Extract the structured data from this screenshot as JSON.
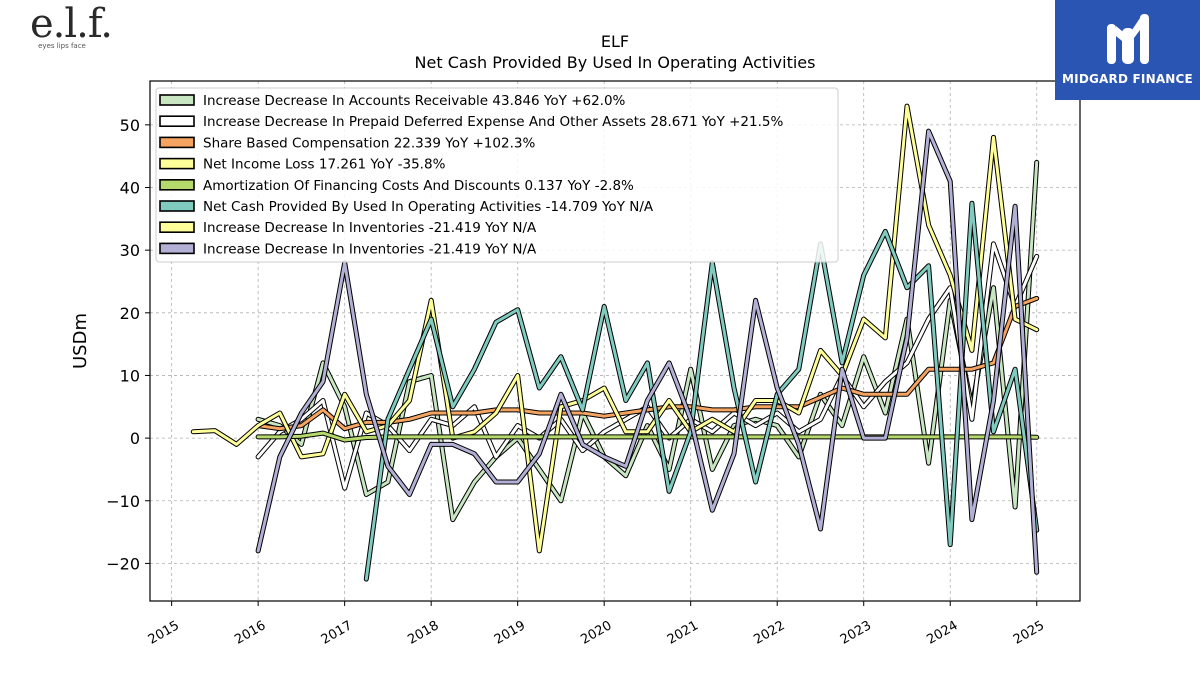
{
  "brand": {
    "left_logo_text": "e.l.f.",
    "left_logo_tagline": "eyes lips face",
    "right_logo_text": "MIDGARD FINANCE",
    "right_logo_color": "#2a55b3"
  },
  "chart_data": {
    "type": "line",
    "title": "ELF",
    "subtitle": "Net Cash Provided By Used In Operating Activities",
    "xlabel": "",
    "ylabel": "USDm",
    "xlim": [
      2014.75,
      2025.5
    ],
    "ylim": [
      -26,
      57
    ],
    "x_ticks": [
      2015,
      2016,
      2017,
      2018,
      2019,
      2020,
      2021,
      2022,
      2023,
      2024,
      2025
    ],
    "x_tick_labels": [
      "2015",
      "2016",
      "2017",
      "2018",
      "2019",
      "2020",
      "2021",
      "2022",
      "2023",
      "2024",
      "2025"
    ],
    "y_ticks": [
      -20,
      -10,
      0,
      10,
      20,
      30,
      40,
      50
    ],
    "y_tick_labels": [
      "−20",
      "−10",
      "0",
      "10",
      "20",
      "30",
      "40",
      "50"
    ],
    "grid": true,
    "legend_position": "top-left",
    "series": [
      {
        "name": "Increase Decrease In Accounts Receivable",
        "legend_label": "Increase Decrease In Accounts Receivable  43.846 YoY +62.0%",
        "color": "#c8e6c1",
        "x": [
          2016.0,
          2016.25,
          2016.5,
          2016.75,
          2017.0,
          2017.25,
          2017.5,
          2017.75,
          2018.0,
          2018.25,
          2018.5,
          2018.75,
          2019.0,
          2019.25,
          2019.5,
          2019.75,
          2020.0,
          2020.25,
          2020.5,
          2020.75,
          2021.0,
          2021.25,
          2021.5,
          2021.75,
          2022.0,
          2022.25,
          2022.5,
          2022.75,
          2023.0,
          2023.25,
          2023.5,
          2023.75,
          2024.0,
          2024.25,
          2024.5,
          2024.75,
          2025.0
        ],
        "y": [
          3,
          2,
          -1,
          12,
          5,
          -9,
          -7,
          9,
          10,
          -13,
          -7,
          -3,
          0,
          -5,
          -10,
          4,
          -3,
          -6,
          2,
          -5,
          11,
          -5,
          2,
          3,
          2,
          -3,
          7,
          2,
          13,
          4,
          19,
          -4,
          22,
          5,
          24,
          -11,
          44
        ]
      },
      {
        "name": "Increase Decrease In Prepaid Deferred Expense And Other Assets",
        "legend_label": "Increase Decrease In Prepaid Deferred Expense And Other Assets  28.671 YoY +21.5%",
        "color": "#ffffff",
        "x": [
          2016.0,
          2016.25,
          2016.5,
          2016.75,
          2017.0,
          2017.25,
          2017.5,
          2017.75,
          2018.0,
          2018.25,
          2018.5,
          2018.75,
          2019.0,
          2019.25,
          2019.5,
          2019.75,
          2020.0,
          2020.25,
          2020.5,
          2020.75,
          2021.0,
          2021.25,
          2021.5,
          2021.75,
          2022.0,
          2022.25,
          2022.5,
          2022.75,
          2023.0,
          2023.25,
          2023.5,
          2023.75,
          2024.0,
          2024.25,
          2024.5,
          2024.75,
          2025.0
        ],
        "y": [
          -3,
          1,
          3,
          6,
          -8,
          4,
          2,
          -2,
          3,
          2,
          5,
          -3,
          2,
          0,
          3,
          -2,
          1,
          3,
          5,
          0,
          3,
          1,
          4,
          2,
          4,
          1,
          3,
          10,
          5,
          9,
          12,
          19,
          24,
          3,
          31,
          21,
          29
        ]
      },
      {
        "name": "Share Based Compensation",
        "legend_label": "Share Based Compensation  22.339 YoY +102.3%",
        "color": "#f4a460",
        "x": [
          2016.0,
          2016.25,
          2016.5,
          2016.75,
          2017.0,
          2017.25,
          2017.5,
          2017.75,
          2018.0,
          2018.25,
          2018.5,
          2018.75,
          2019.0,
          2019.25,
          2019.5,
          2019.75,
          2020.0,
          2020.25,
          2020.5,
          2020.75,
          2021.0,
          2021.25,
          2021.5,
          2021.75,
          2022.0,
          2022.25,
          2022.5,
          2022.75,
          2023.0,
          2023.25,
          2023.5,
          2023.75,
          2024.0,
          2024.25,
          2024.5,
          2024.75,
          2025.0
        ],
        "y": [
          2,
          1.5,
          2,
          4.5,
          1.5,
          2.5,
          2.5,
          3,
          4,
          4,
          4,
          4.5,
          4.5,
          4,
          4,
          4,
          3.5,
          4,
          4.5,
          5,
          5,
          4.5,
          4.5,
          5,
          5,
          5,
          6.5,
          8,
          7,
          7,
          7,
          11,
          11,
          11,
          12,
          21,
          22.3
        ]
      },
      {
        "name": "Net Income Loss",
        "legend_label": "Net Income Loss  17.261 YoY -35.8%",
        "color": "#ffff99",
        "x": [
          2015.25,
          2015.5,
          2015.75,
          2016.0,
          2016.25,
          2016.5,
          2016.75,
          2017.0,
          2017.25,
          2017.5,
          2017.75,
          2018.0,
          2018.25,
          2018.5,
          2018.75,
          2019.0,
          2019.25,
          2019.5,
          2019.75,
          2020.0,
          2020.25,
          2020.5,
          2020.75,
          2021.0,
          2021.25,
          2021.5,
          2021.75,
          2022.0,
          2022.25,
          2022.5,
          2022.75,
          2023.0,
          2023.25,
          2023.5,
          2023.75,
          2024.0,
          2024.25,
          2024.5,
          2024.75,
          2025.0
        ],
        "y": [
          1,
          1.2,
          -1,
          2,
          4,
          -3,
          -2.5,
          7,
          1,
          2,
          6,
          22,
          0,
          1,
          4,
          10,
          -18,
          5,
          6,
          8,
          1,
          1,
          6,
          1,
          3,
          1,
          6,
          6,
          4,
          14,
          10,
          19,
          16,
          53,
          34,
          26,
          14,
          48,
          19,
          17.3
        ]
      },
      {
        "name": "Amortization Of Financing Costs And Discounts",
        "legend_label": "Amortization Of Financing Costs And Discounts  0.137 YoY -2.8%",
        "color": "#b5d96b",
        "x": [
          2016.0,
          2016.25,
          2016.5,
          2016.75,
          2017.0,
          2017.25,
          2017.5,
          2017.75,
          2018.0,
          2018.25,
          2018.5,
          2018.75,
          2019.0,
          2019.25,
          2019.5,
          2019.75,
          2020.0,
          2020.25,
          2020.5,
          2020.75,
          2021.0,
          2021.25,
          2021.5,
          2021.75,
          2022.0,
          2022.25,
          2022.5,
          2022.75,
          2023.0,
          2023.25,
          2023.5,
          2023.75,
          2024.0,
          2024.25,
          2024.5,
          2024.75,
          2025.0
        ],
        "y": [
          0.2,
          0.2,
          0.3,
          0.8,
          -0.3,
          0.1,
          0.2,
          0.2,
          0.2,
          0.2,
          0.2,
          0.2,
          0.2,
          0.2,
          0.2,
          0.2,
          0.2,
          0.2,
          0.2,
          0.2,
          0.2,
          0.2,
          0.2,
          0.2,
          0.2,
          0.2,
          0.2,
          0.2,
          0.2,
          0.2,
          0.2,
          0.2,
          0.2,
          0.2,
          0.2,
          0.2,
          0.137
        ]
      },
      {
        "name": "Net Cash Provided By Used In Operating Activities",
        "legend_label": "Net Cash Provided By Used In Operating Activities  -14.709 YoY N/A",
        "color": "#80cbbf",
        "x": [
          2017.25,
          2017.5,
          2017.75,
          2018.0,
          2018.25,
          2018.5,
          2018.75,
          2019.0,
          2019.25,
          2019.5,
          2019.75,
          2020.0,
          2020.25,
          2020.5,
          2020.75,
          2021.0,
          2021.25,
          2021.5,
          2021.75,
          2022.0,
          2022.25,
          2022.5,
          2022.75,
          2023.0,
          2023.25,
          2023.5,
          2023.75,
          2024.0,
          2024.25,
          2024.5,
          2024.75,
          2025.0
        ],
        "y": [
          -22.5,
          3,
          11,
          19,
          5,
          11,
          18.5,
          20.5,
          8,
          13,
          4.5,
          21,
          6,
          12,
          -8.5,
          1,
          28,
          8,
          -7,
          7,
          11,
          31,
          12,
          26,
          33,
          24,
          27.5,
          -17,
          37.5,
          1,
          11,
          -14.7
        ]
      },
      {
        "name": "Increase Decrease In Inventories",
        "legend_label": "Increase Decrease In Inventories  -21.419 YoY N/A",
        "color": "#ffff99",
        "x": [],
        "y": []
      },
      {
        "name": "Increase Decrease In Inventories",
        "legend_label": "Increase Decrease In Inventories  -21.419 YoY N/A",
        "color": "#b3b0d6",
        "x": [
          2016.0,
          2016.25,
          2016.5,
          2016.75,
          2017.0,
          2017.25,
          2017.5,
          2017.75,
          2018.0,
          2018.25,
          2018.5,
          2018.75,
          2019.0,
          2019.25,
          2019.5,
          2019.75,
          2020.0,
          2020.25,
          2020.5,
          2020.75,
          2021.0,
          2021.25,
          2021.5,
          2021.75,
          2022.0,
          2022.25,
          2022.5,
          2022.75,
          2023.0,
          2023.25,
          2023.5,
          2023.75,
          2024.0,
          2024.25,
          2024.5,
          2024.75,
          2025.0
        ],
        "y": [
          -18,
          -3,
          4,
          9,
          28,
          7,
          -4.5,
          -9,
          -1,
          -1,
          -2.5,
          -7,
          -7,
          -2.5,
          7,
          -1,
          -3,
          -4.5,
          6,
          12,
          3,
          -11.5,
          -2.5,
          22,
          8,
          -1,
          -14.5,
          11,
          0,
          0,
          16,
          49,
          41,
          -13,
          6,
          37,
          -21.4
        ]
      }
    ]
  }
}
